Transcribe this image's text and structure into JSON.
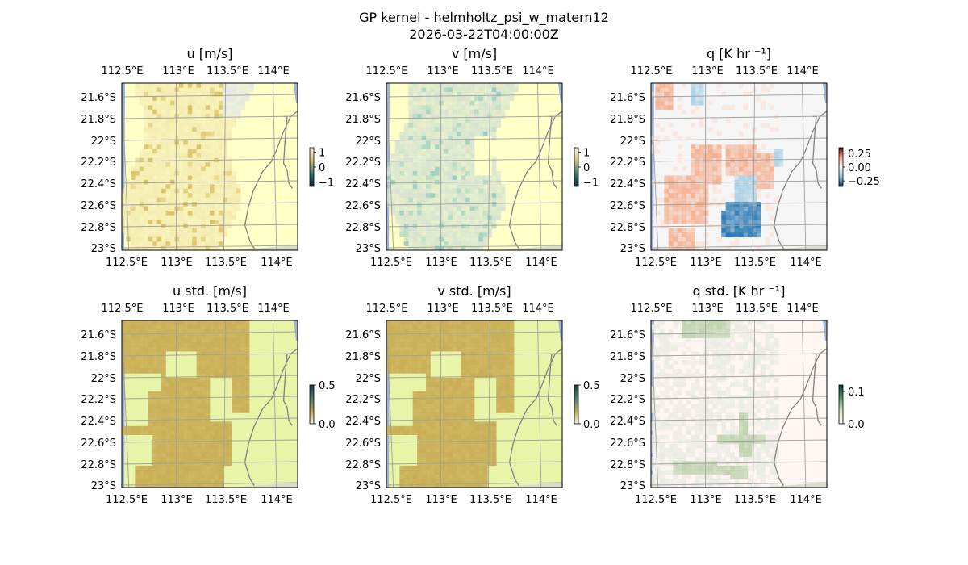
{
  "figure": {
    "title": "GP kernel - helmholtz_psi_w_matern12",
    "subtitle": "2026-03-22T04:00:00Z"
  },
  "chart_data": [
    {
      "type": "heatmap",
      "title": "u [m/s]",
      "xticks": [
        "112.5°E",
        "113°E",
        "113.5°E",
        "114°E"
      ],
      "yticks": [
        "21.6°S",
        "21.8°S",
        "22°S",
        "22.2°S",
        "22.4°S",
        "22.6°S",
        "22.8°S",
        "23°S"
      ],
      "colorbar": {
        "ticks": [
          "1",
          "0",
          "−1"
        ],
        "range": [
          -1.3,
          1.3
        ]
      },
      "colors": {
        "background": "#ffffc8",
        "field": "#f4ebb0",
        "speckle": "#d8c068",
        "water": "#9db4d8"
      }
    },
    {
      "type": "heatmap",
      "title": "v [m/s]",
      "xticks": [
        "112.5°E",
        "113°E",
        "113.5°E",
        "114°E"
      ],
      "yticks": [
        "21.6°S",
        "21.8°S",
        "22°S",
        "22.2°S",
        "22.4°S",
        "22.6°S",
        "22.8°S",
        "23°S"
      ],
      "colorbar": {
        "ticks": [
          "1",
          "0",
          "−1"
        ],
        "range": [
          -1.3,
          1.3
        ]
      },
      "colors": {
        "background": "#ffffc8",
        "field": "#d6e3d0",
        "speckle": "#9ccfc0",
        "water": "#9db4d8"
      }
    },
    {
      "type": "heatmap",
      "title": "q [K hr ⁻¹]",
      "xticks": [
        "112.5°E",
        "113°E",
        "113.5°E",
        "114°E"
      ],
      "yticks": [
        "21.6°S",
        "21.8°S",
        "22°S",
        "22.2°S",
        "22.4°S",
        "22.6°S",
        "22.8°S",
        "23°S"
      ],
      "colorbar": {
        "ticks": [
          "0.25",
          "0.00",
          "−0.25"
        ],
        "range": [
          -0.35,
          0.35
        ]
      },
      "colors": {
        "background": "#f5f5f5",
        "warm": "#f4a582",
        "cool": "#2c7bb6",
        "water": "#9db4d8"
      }
    },
    {
      "type": "heatmap",
      "title": "u std. [m/s]",
      "xticks": [
        "112.5°E",
        "113°E",
        "113.5°E",
        "114°E"
      ],
      "yticks": [
        "21.6°S",
        "21.8°S",
        "22°S",
        "22.2°S",
        "22.4°S",
        "22.6°S",
        "22.8°S",
        "23°S"
      ],
      "colorbar": {
        "ticks": [
          "0.5",
          "0.0"
        ],
        "range": [
          0,
          0.5
        ]
      },
      "colors": {
        "background": "#e8f4a8",
        "field": "#c9ae55",
        "water": "#9db4d8"
      }
    },
    {
      "type": "heatmap",
      "title": "v std. [m/s]",
      "xticks": [
        "112.5°E",
        "113°E",
        "113.5°E",
        "114°E"
      ],
      "yticks": [
        "21.6°S",
        "21.8°S",
        "22°S",
        "22.2°S",
        "22.4°S",
        "22.6°S",
        "22.8°S",
        "23°S"
      ],
      "colorbar": {
        "ticks": [
          "0.5",
          "0.0"
        ],
        "range": [
          0,
          0.5
        ]
      },
      "colors": {
        "background": "#e8f4a8",
        "field": "#c9ae55",
        "water": "#9db4d8"
      }
    },
    {
      "type": "heatmap",
      "title": "q std. [K hr ⁻¹]",
      "xticks": [
        "112.5°E",
        "113°E",
        "113.5°E",
        "114°E"
      ],
      "yticks": [
        "21.6°S",
        "21.8°S",
        "22°S",
        "22.2°S",
        "22.4°S",
        "22.6°S",
        "22.8°S",
        "23°S"
      ],
      "colorbar": {
        "ticks": [
          "0.1",
          "0.0"
        ],
        "range": [
          0,
          0.12
        ]
      },
      "colors": {
        "background": "#fff5f3",
        "field": "#e9ece2",
        "speckle": "#b8cfa8",
        "water": "#9db4d8"
      }
    }
  ]
}
